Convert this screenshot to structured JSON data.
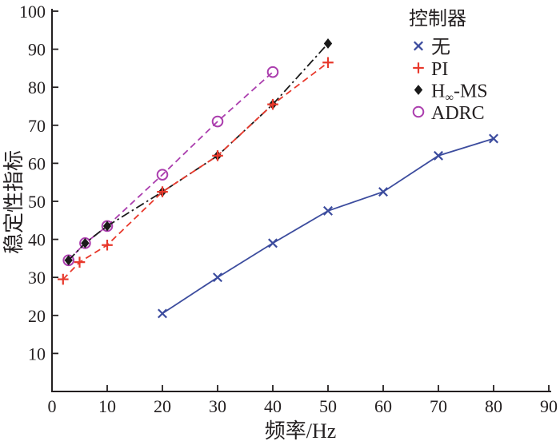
{
  "figure": {
    "background": "#ffffff"
  },
  "chart_data": {
    "type": "line",
    "title": "",
    "xlabel": "频率/Hz",
    "ylabel": "稳定性指标",
    "xlim": [
      0,
      90
    ],
    "ylim": [
      0,
      100
    ],
    "x_ticks": [
      0,
      10,
      20,
      30,
      40,
      50,
      60,
      70,
      80,
      90
    ],
    "y_ticks": [
      10,
      20,
      30,
      40,
      50,
      60,
      70,
      80,
      90,
      100
    ],
    "grid": false,
    "axis_color": "#231f20",
    "legend": {
      "title": "控制器",
      "position": "top-right"
    },
    "series": [
      {
        "id": "none",
        "name": "无",
        "marker": "x",
        "line": "solid",
        "color": "#3c4c9e",
        "points": [
          [
            20,
            20.5
          ],
          [
            30,
            30
          ],
          [
            40,
            39
          ],
          [
            50,
            47.5
          ],
          [
            60,
            52.5
          ],
          [
            70,
            62
          ],
          [
            80,
            66.5
          ]
        ]
      },
      {
        "id": "pi",
        "name": "PI",
        "marker": "plus",
        "line": "dashed",
        "color": "#e8392c",
        "points": [
          [
            2,
            29.5
          ],
          [
            5,
            34
          ],
          [
            10,
            38.5
          ],
          [
            20,
            52.5
          ],
          [
            30,
            62
          ],
          [
            40,
            75.5
          ],
          [
            50,
            86.5
          ]
        ]
      },
      {
        "id": "hinf-ms",
        "name": "H∞-MS",
        "marker": "diamond",
        "line": "dashdot",
        "color": "#1a1a1a",
        "points": [
          [
            3,
            34.5
          ],
          [
            6,
            39
          ],
          [
            10,
            43.5
          ],
          [
            20,
            52.5
          ],
          [
            30,
            62
          ],
          [
            40,
            75.5
          ],
          [
            50,
            91.5
          ]
        ]
      },
      {
        "id": "adrc",
        "name": "ADRC",
        "marker": "circle",
        "line": "dashed",
        "color": "#ab3eae",
        "points": [
          [
            3,
            34.5
          ],
          [
            6,
            39
          ],
          [
            10,
            43.5
          ],
          [
            20,
            57
          ],
          [
            30,
            71
          ],
          [
            40,
            84
          ]
        ]
      }
    ]
  }
}
